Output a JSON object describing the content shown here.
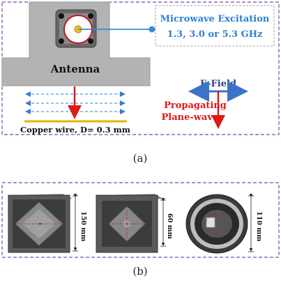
{
  "panel_a": {
    "excitation_line1": "Microwave Excitation",
    "excitation_line2": "1.3, 3.0 or 5.3 GHz",
    "antenna_label": "Antenna",
    "efield_label": "E-Field",
    "propagating_line1": "Propagating",
    "propagating_line2": "Plane-waves",
    "wire_label": "Copper wire, D= 0.3 mm",
    "caption": "(a)"
  },
  "panel_b": {
    "dim1": "150 mm",
    "dim2": "60 mm",
    "dim3": "110 mm",
    "caption": "(b)"
  },
  "colors": {
    "excitation_text": "#2f7fd0",
    "efield_arrow": "#3a74c8",
    "propagation": "#e01818",
    "wire": "#e8b200",
    "frame_dash": "#7a4aa0",
    "antenna_gray": "#b3b3b3"
  }
}
